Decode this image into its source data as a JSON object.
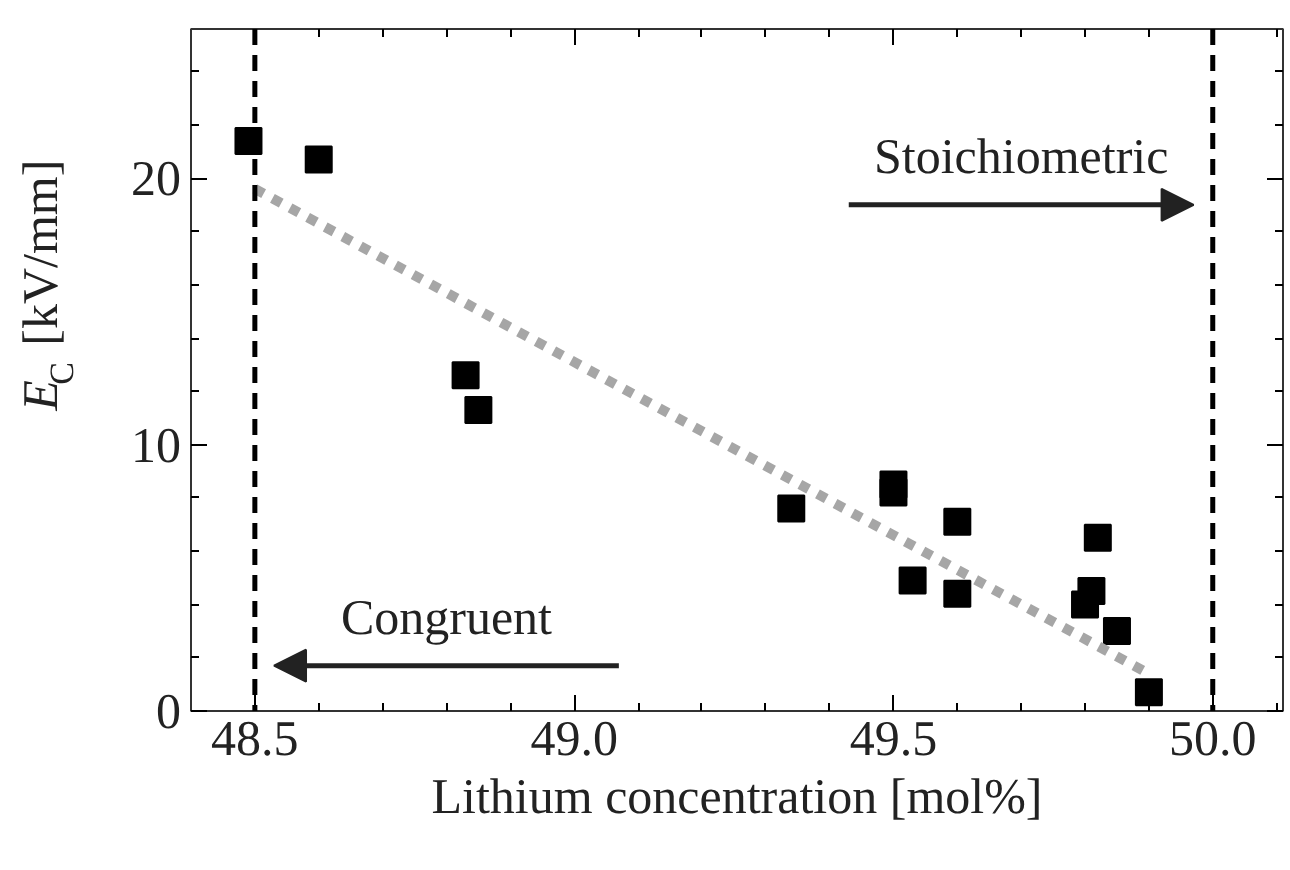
{
  "chart_data": {
    "type": "scatter",
    "xlabel": "Lithium concentration [mol%]",
    "ylabel": "E$_{C}$ [kV/mm]",
    "xlim": [
      48.4,
      50.11
    ],
    "ylim": [
      0,
      25.6
    ],
    "xticks": [
      48.5,
      {
        "value": 49.0,
        "label": "49.0"
      },
      49.5,
      {
        "value": 50.0,
        "label": "50.0"
      },
      {
        "value": 48.4,
        "label": null
      },
      {
        "value": 48.6,
        "label": null
      },
      {
        "value": 48.7,
        "label": null
      },
      {
        "value": 48.8,
        "label": null
      },
      {
        "value": 48.9,
        "label": null
      },
      {
        "value": 49.1,
        "label": null
      },
      {
        "value": 49.2,
        "label": null
      },
      {
        "value": 49.3,
        "label": null
      },
      {
        "value": 49.4,
        "label": null
      },
      {
        "value": 49.6,
        "label": null
      },
      {
        "value": 49.7,
        "label": null
      },
      {
        "value": 49.8,
        "label": null
      },
      {
        "value": 49.9,
        "label": null
      },
      {
        "value": 50.1,
        "label": null
      }
    ],
    "yticks": [
      0,
      10,
      20,
      {
        "value": 2,
        "label": null
      },
      {
        "value": 4,
        "label": null
      },
      {
        "value": 6,
        "label": null
      },
      {
        "value": 8,
        "label": null
      },
      {
        "value": 12,
        "label": null
      },
      {
        "value": 14,
        "label": null
      },
      {
        "value": 16,
        "label": null
      },
      {
        "value": 18,
        "label": null
      },
      {
        "value": 22,
        "label": null
      },
      {
        "value": 24,
        "label": null
      }
    ],
    "grid": false,
    "marker": "square",
    "series": [
      {
        "type": "scatter",
        "color": "#000000",
        "x": [
          48.49,
          48.6,
          48.83,
          48.85,
          49.34,
          49.5,
          49.5,
          49.6,
          49.53,
          49.6,
          49.82,
          49.81,
          49.8,
          49.85,
          49.9
        ],
        "values": [
          21.4,
          20.7,
          12.6,
          11.3,
          7.6,
          8.5,
          8.2,
          7.1,
          4.9,
          4.4,
          6.5,
          4.5,
          4.0,
          3.0,
          0.7
        ]
      },
      {
        "type": "line",
        "color": "#a6a6a6",
        "line_style": "dotted",
        "marker": "none",
        "x": [
          48.5,
          49.9
        ],
        "values": [
          19.6,
          1.4
        ]
      }
    ],
    "ref_lines": [
      {
        "axis": "x",
        "value": 48.5,
        "color": "#000000",
        "line_style": "dashed"
      },
      {
        "axis": "x",
        "value": 50.0,
        "color": "#000000",
        "line_style": "dashed"
      }
    ],
    "annotations": [
      {
        "text": "Congruent",
        "x": 48.5,
        "y": 1.7
      },
      {
        "text": "Stoichiometric",
        "x": 50.0,
        "y": 19.0
      }
    ]
  }
}
